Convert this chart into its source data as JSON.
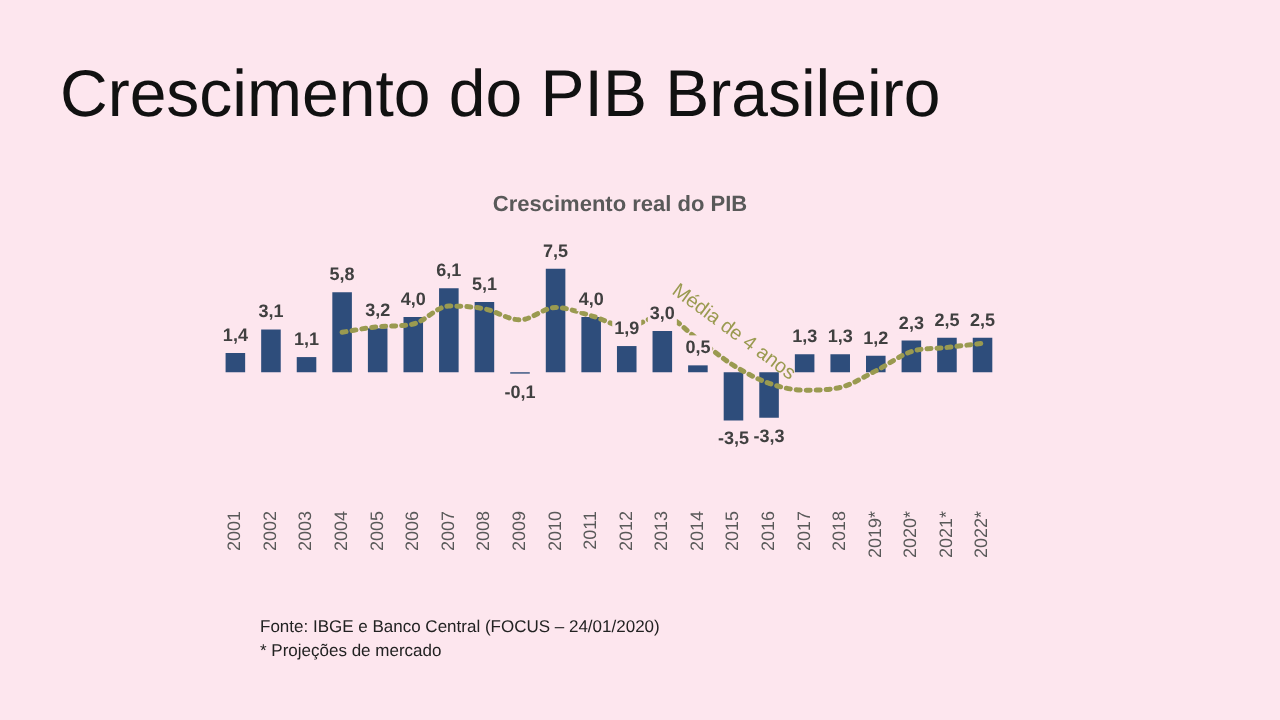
{
  "chart_data": {
    "type": "bar",
    "title": "Crescimento do PIB Brasileiro",
    "subtitle": "Crescimento real do PIB",
    "categories": [
      "2001",
      "2002",
      "2003",
      "2004",
      "2005",
      "2006",
      "2007",
      "2008",
      "2009",
      "2010",
      "2011",
      "2012",
      "2013",
      "2014",
      "2015",
      "2016",
      "2017",
      "2018",
      "2019*",
      "2020*",
      "2021*",
      "2022*"
    ],
    "series": [
      {
        "color": "#2e4d7b",
        "values": [
          1.4,
          3.1,
          1.1,
          5.8,
          3.2,
          4.0,
          6.1,
          5.1,
          -0.1,
          7.5,
          4.0,
          1.9,
          3.0,
          0.5,
          -3.5,
          -3.3,
          1.3,
          1.3,
          1.2,
          2.3,
          2.5,
          2.5
        ],
        "value_labels": [
          "1,4",
          "3,1",
          "1,1",
          "5,8",
          "3,2",
          "4,0",
          "6,1",
          "5,1",
          "-0,1",
          "7,5",
          "4,0",
          "1,9",
          "3,0",
          "0,5",
          "-3,5",
          "-3,3",
          "1,3",
          "1,3",
          "1,2",
          "2,3",
          "2,5",
          "2,5"
        ]
      },
      {
        "type": "line",
        "name": "Média de 4 anos",
        "color": "#9a9a50",
        "line_style": "dotted",
        "marker": "none",
        "values": [
          null,
          null,
          null,
          2.9,
          3.3,
          3.5,
          4.8,
          4.6,
          3.8,
          4.7,
          4.1,
          3.3,
          4.1,
          2.4,
          0.5,
          -0.8,
          -1.3,
          -1.1,
          0.1,
          1.5,
          1.8,
          2.1
        ]
      }
    ],
    "grid": false,
    "legend": false,
    "annotations": [
      "Fonte: IBGE e Banco Central  (FOCUS – 24/01/2020)",
      "* Projeções de mercado"
    ]
  }
}
